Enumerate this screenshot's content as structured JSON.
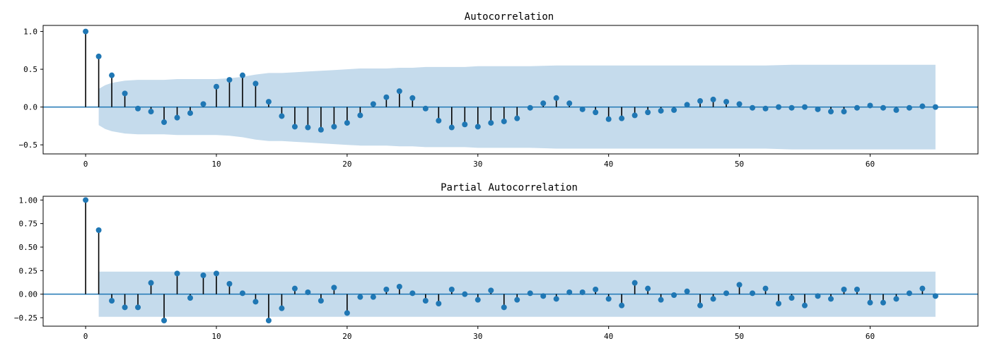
{
  "chart_data": [
    {
      "type": "stem",
      "title": "Autocorrelation",
      "xlabel": "",
      "ylabel": "",
      "xlim": [
        -3.25,
        68.25
      ],
      "ylim": [
        -0.62,
        1.08
      ],
      "xticks": [
        0,
        10,
        20,
        30,
        40,
        50,
        60
      ],
      "xtick_labels": [
        "0",
        "10",
        "20",
        "30",
        "40",
        "50",
        "60"
      ],
      "yticks": [
        1.0,
        0.5,
        0.0,
        -0.5
      ],
      "ytick_labels": [
        "1.0",
        "0.5",
        "0.0",
        "−0.5"
      ],
      "grid": false,
      "lags": [
        0,
        1,
        2,
        3,
        4,
        5,
        6,
        7,
        8,
        9,
        10,
        11,
        12,
        13,
        14,
        15,
        16,
        17,
        18,
        19,
        20,
        21,
        22,
        23,
        24,
        25,
        26,
        27,
        28,
        29,
        30,
        31,
        32,
        33,
        34,
        35,
        36,
        37,
        38,
        39,
        40,
        41,
        42,
        43,
        44,
        45,
        46,
        47,
        48,
        49,
        50,
        51,
        52,
        53,
        54,
        55,
        56,
        57,
        58,
        59,
        60,
        61,
        62,
        63,
        64,
        65
      ],
      "values": [
        1.0,
        0.67,
        0.42,
        0.18,
        -0.02,
        -0.06,
        -0.2,
        -0.14,
        -0.08,
        0.04,
        0.27,
        0.36,
        0.42,
        0.31,
        0.07,
        -0.12,
        -0.26,
        -0.27,
        -0.3,
        -0.26,
        -0.21,
        -0.11,
        0.04,
        0.13,
        0.21,
        0.12,
        -0.02,
        -0.18,
        -0.27,
        -0.23,
        -0.26,
        -0.21,
        -0.19,
        -0.15,
        -0.01,
        0.05,
        0.12,
        0.05,
        -0.03,
        -0.07,
        -0.16,
        -0.15,
        -0.11,
        -0.07,
        -0.05,
        -0.04,
        0.03,
        0.08,
        0.1,
        0.07,
        0.04,
        -0.01,
        -0.02,
        0.0,
        -0.01,
        0.0,
        -0.03,
        -0.06,
        -0.06,
        -0.01,
        0.02,
        -0.01,
        -0.04,
        -0.01,
        0.01,
        0.0
      ],
      "confidence_lags": [
        1,
        1.5,
        2,
        3,
        4,
        5,
        6,
        7,
        8,
        9,
        10,
        11,
        12,
        13,
        14,
        15,
        16,
        17,
        18,
        19,
        20,
        21,
        22,
        23,
        24,
        25,
        26,
        27,
        28,
        29,
        30,
        32,
        34,
        36,
        38,
        40,
        42,
        44,
        46,
        48,
        50,
        52,
        54,
        56,
        58,
        60,
        62,
        64,
        65
      ],
      "confidence_upper": [
        0.24,
        0.29,
        0.32,
        0.35,
        0.36,
        0.36,
        0.36,
        0.37,
        0.37,
        0.37,
        0.37,
        0.38,
        0.4,
        0.43,
        0.45,
        0.45,
        0.46,
        0.47,
        0.48,
        0.49,
        0.5,
        0.51,
        0.51,
        0.51,
        0.52,
        0.52,
        0.53,
        0.53,
        0.53,
        0.53,
        0.54,
        0.54,
        0.54,
        0.55,
        0.55,
        0.55,
        0.55,
        0.55,
        0.55,
        0.55,
        0.55,
        0.55,
        0.56,
        0.56,
        0.56,
        0.56,
        0.56,
        0.56,
        0.56
      ],
      "colors": {
        "markers": "#1f77b4",
        "stems": "#000000",
        "baseline": "#1f77b4",
        "confidence": "#c5dbec"
      }
    },
    {
      "type": "stem",
      "title": "Partial Autocorrelation",
      "xlabel": "",
      "ylabel": "",
      "xlim": [
        -3.25,
        68.25
      ],
      "ylim": [
        -0.34,
        1.04
      ],
      "xticks": [
        0,
        10,
        20,
        30,
        40,
        50,
        60
      ],
      "xtick_labels": [
        "0",
        "10",
        "20",
        "30",
        "40",
        "50",
        "60"
      ],
      "yticks": [
        1.0,
        0.75,
        0.5,
        0.25,
        0.0,
        -0.25
      ],
      "ytick_labels": [
        "1.00",
        "0.75",
        "0.50",
        "0.25",
        "0.00",
        "−0.25"
      ],
      "grid": false,
      "lags": [
        0,
        1,
        2,
        3,
        4,
        5,
        6,
        7,
        8,
        9,
        10,
        11,
        12,
        13,
        14,
        15,
        16,
        17,
        18,
        19,
        20,
        21,
        22,
        23,
        24,
        25,
        26,
        27,
        28,
        29,
        30,
        31,
        32,
        33,
        34,
        35,
        36,
        37,
        38,
        39,
        40,
        41,
        42,
        43,
        44,
        45,
        46,
        47,
        48,
        49,
        50,
        51,
        52,
        53,
        54,
        55,
        56,
        57,
        58,
        59,
        60,
        61,
        62,
        63,
        64,
        65
      ],
      "values": [
        1.0,
        0.68,
        -0.07,
        -0.14,
        -0.14,
        0.12,
        -0.28,
        0.22,
        -0.04,
        0.2,
        0.22,
        0.11,
        0.01,
        -0.08,
        -0.28,
        -0.15,
        0.06,
        0.02,
        -0.07,
        0.07,
        -0.2,
        -0.03,
        -0.03,
        0.05,
        0.08,
        0.01,
        -0.07,
        -0.1,
        0.05,
        0.0,
        -0.06,
        0.04,
        -0.14,
        -0.06,
        0.01,
        -0.02,
        -0.05,
        0.02,
        0.02,
        0.05,
        -0.05,
        -0.12,
        0.12,
        0.06,
        -0.06,
        -0.01,
        0.03,
        -0.12,
        -0.05,
        0.01,
        0.1,
        0.01,
        0.06,
        -0.1,
        -0.04,
        -0.12,
        -0.02,
        -0.05,
        0.05,
        0.05,
        -0.09,
        -0.09,
        -0.05,
        0.01,
        0.06,
        -0.02
      ],
      "confidence_lags": [
        1,
        65
      ],
      "confidence_upper": [
        0.24,
        0.24
      ],
      "colors": {
        "markers": "#1f77b4",
        "stems": "#000000",
        "baseline": "#1f77b4",
        "confidence": "#c5dbec"
      }
    }
  ]
}
